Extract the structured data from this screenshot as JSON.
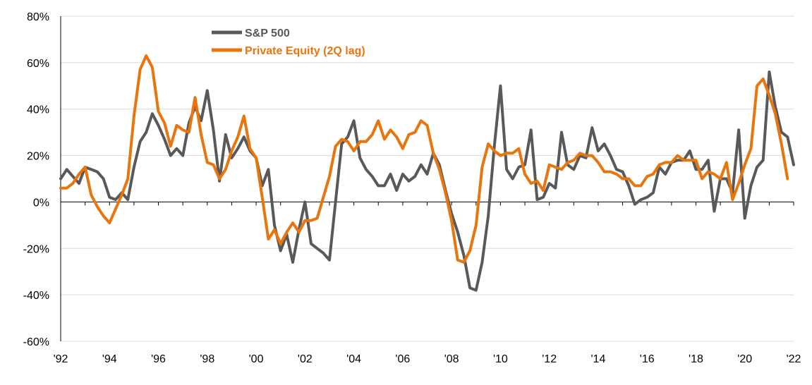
{
  "chart_data": {
    "type": "line",
    "title": "",
    "xlabel": "",
    "ylabel": "",
    "xlim": [
      1992,
      2022
    ],
    "ylim": [
      -60,
      80
    ],
    "y_ticks": [
      -60,
      -40,
      -20,
      0,
      20,
      40,
      60,
      80
    ],
    "y_tick_labels": [
      "-60%",
      "-40%",
      "-20%",
      "0%",
      "20%",
      "40%",
      "60%",
      "80%"
    ],
    "x_ticks": [
      1992,
      1994,
      1996,
      1998,
      2000,
      2002,
      2004,
      2006,
      2008,
      2010,
      2012,
      2014,
      2016,
      2018,
      2020,
      2022
    ],
    "x_tick_labels": [
      "'92",
      "'94",
      "'96",
      "'98",
      "'00",
      "'02",
      "'04",
      "'06",
      "'08",
      "'10",
      "'12",
      "'14",
      "'16",
      "'18",
      "'20",
      "'22"
    ],
    "grid": "horizontal",
    "legend_position": "top-left",
    "series": [
      {
        "name": "S&P 500",
        "color": "#595959",
        "points": [
          [
            1992.0,
            10
          ],
          [
            1992.25,
            14
          ],
          [
            1992.5,
            11
          ],
          [
            1992.75,
            8
          ],
          [
            1993.0,
            15
          ],
          [
            1993.25,
            14
          ],
          [
            1993.5,
            13
          ],
          [
            1993.75,
            10
          ],
          [
            1994.0,
            2
          ],
          [
            1994.25,
            1
          ],
          [
            1994.5,
            4
          ],
          [
            1994.75,
            1
          ],
          [
            1995.0,
            15
          ],
          [
            1995.25,
            26
          ],
          [
            1995.5,
            30
          ],
          [
            1995.75,
            38
          ],
          [
            1996.0,
            33
          ],
          [
            1996.25,
            27
          ],
          [
            1996.5,
            20
          ],
          [
            1996.75,
            23
          ],
          [
            1997.0,
            20
          ],
          [
            1997.25,
            34
          ],
          [
            1997.5,
            41
          ],
          [
            1997.75,
            35
          ],
          [
            1998.0,
            48
          ],
          [
            1998.25,
            31
          ],
          [
            1998.5,
            9
          ],
          [
            1998.75,
            29
          ],
          [
            1999.0,
            19
          ],
          [
            1999.25,
            23
          ],
          [
            1999.5,
            28
          ],
          [
            1999.75,
            22
          ],
          [
            2000.0,
            19
          ],
          [
            2000.25,
            7
          ],
          [
            2000.5,
            14
          ],
          [
            2000.75,
            -10
          ],
          [
            2001.0,
            -21
          ],
          [
            2001.25,
            -14
          ],
          [
            2001.5,
            -26
          ],
          [
            2001.75,
            -12
          ],
          [
            2002.0,
            0
          ],
          [
            2002.25,
            -18
          ],
          [
            2002.5,
            -20
          ],
          [
            2002.75,
            -22
          ],
          [
            2003.0,
            -25
          ],
          [
            2003.25,
            0
          ],
          [
            2003.5,
            25
          ],
          [
            2003.75,
            28
          ],
          [
            2004.0,
            35
          ],
          [
            2004.25,
            19
          ],
          [
            2004.5,
            14
          ],
          [
            2004.75,
            11
          ],
          [
            2005.0,
            7
          ],
          [
            2005.25,
            7
          ],
          [
            2005.5,
            12
          ],
          [
            2005.75,
            5
          ],
          [
            2006.0,
            12
          ],
          [
            2006.25,
            9
          ],
          [
            2006.5,
            11
          ],
          [
            2006.75,
            16
          ],
          [
            2007.0,
            12
          ],
          [
            2007.25,
            21
          ],
          [
            2007.5,
            16
          ],
          [
            2007.75,
            5
          ],
          [
            2008.0,
            -5
          ],
          [
            2008.25,
            -13
          ],
          [
            2008.5,
            -23
          ],
          [
            2008.75,
            -37
          ],
          [
            2009.0,
            -38
          ],
          [
            2009.25,
            -26
          ],
          [
            2009.5,
            -6
          ],
          [
            2009.75,
            24
          ],
          [
            2010.0,
            50
          ],
          [
            2010.25,
            14
          ],
          [
            2010.5,
            10
          ],
          [
            2010.75,
            15
          ],
          [
            2011.0,
            16
          ],
          [
            2011.25,
            31
          ],
          [
            2011.5,
            1
          ],
          [
            2011.75,
            2
          ],
          [
            2012.0,
            8
          ],
          [
            2012.25,
            6
          ],
          [
            2012.5,
            30
          ],
          [
            2012.75,
            16
          ],
          [
            2013.0,
            14
          ],
          [
            2013.25,
            20
          ],
          [
            2013.5,
            19
          ],
          [
            2013.75,
            32
          ],
          [
            2014.0,
            22
          ],
          [
            2014.25,
            25
          ],
          [
            2014.5,
            20
          ],
          [
            2014.75,
            14
          ],
          [
            2015.0,
            13
          ],
          [
            2015.25,
            7
          ],
          [
            2015.5,
            -1
          ],
          [
            2015.75,
            1
          ],
          [
            2016.0,
            2
          ],
          [
            2016.25,
            4
          ],
          [
            2016.5,
            15
          ],
          [
            2016.75,
            12
          ],
          [
            2017.0,
            17
          ],
          [
            2017.25,
            18
          ],
          [
            2017.5,
            18
          ],
          [
            2017.75,
            22
          ],
          [
            2018.0,
            14
          ],
          [
            2018.25,
            14
          ],
          [
            2018.5,
            18
          ],
          [
            2018.75,
            -4
          ],
          [
            2019.0,
            10
          ],
          [
            2019.25,
            10
          ],
          [
            2019.5,
            4
          ],
          [
            2019.75,
            31
          ],
          [
            2020.0,
            -7
          ],
          [
            2020.25,
            7
          ],
          [
            2020.5,
            15
          ],
          [
            2020.75,
            18
          ],
          [
            2021.0,
            56
          ],
          [
            2021.25,
            41
          ],
          [
            2021.5,
            30
          ],
          [
            2021.75,
            28
          ],
          [
            2022.0,
            16
          ]
        ]
      },
      {
        "name": "Private Equity (2Q lag)",
        "color": "#E8750D",
        "points": [
          [
            1992.0,
            6
          ],
          [
            1992.25,
            6
          ],
          [
            1992.5,
            8
          ],
          [
            1992.75,
            12
          ],
          [
            1993.0,
            15
          ],
          [
            1993.25,
            3
          ],
          [
            1993.5,
            -2
          ],
          [
            1993.75,
            -6
          ],
          [
            1994.0,
            -9
          ],
          [
            1994.25,
            -3
          ],
          [
            1994.5,
            3
          ],
          [
            1994.75,
            10
          ],
          [
            1995.0,
            37
          ],
          [
            1995.25,
            57
          ],
          [
            1995.5,
            63
          ],
          [
            1995.75,
            58
          ],
          [
            1996.0,
            39
          ],
          [
            1996.25,
            34
          ],
          [
            1996.5,
            24
          ],
          [
            1996.75,
            33
          ],
          [
            1997.0,
            31
          ],
          [
            1997.25,
            30
          ],
          [
            1997.5,
            45
          ],
          [
            1997.75,
            29
          ],
          [
            1998.0,
            17
          ],
          [
            1998.25,
            16
          ],
          [
            1998.5,
            10
          ],
          [
            1998.75,
            14
          ],
          [
            1999.0,
            22
          ],
          [
            1999.25,
            28
          ],
          [
            1999.5,
            37
          ],
          [
            1999.75,
            23
          ],
          [
            2000.0,
            19
          ],
          [
            2000.25,
            2
          ],
          [
            2000.5,
            -16
          ],
          [
            2000.75,
            -12
          ],
          [
            2001.0,
            -18
          ],
          [
            2001.25,
            -13
          ],
          [
            2001.5,
            -9
          ],
          [
            2001.75,
            -13
          ],
          [
            2002.0,
            -8
          ],
          [
            2002.25,
            -8
          ],
          [
            2002.5,
            -7
          ],
          [
            2002.75,
            2
          ],
          [
            2003.0,
            11
          ],
          [
            2003.25,
            24
          ],
          [
            2003.5,
            27
          ],
          [
            2003.75,
            26
          ],
          [
            2004.0,
            22
          ],
          [
            2004.25,
            26
          ],
          [
            2004.5,
            26
          ],
          [
            2004.75,
            29
          ],
          [
            2005.0,
            35
          ],
          [
            2005.25,
            27
          ],
          [
            2005.5,
            31
          ],
          [
            2005.75,
            28
          ],
          [
            2006.0,
            23
          ],
          [
            2006.25,
            29
          ],
          [
            2006.5,
            30
          ],
          [
            2006.75,
            35
          ],
          [
            2007.0,
            33
          ],
          [
            2007.25,
            21
          ],
          [
            2007.5,
            14
          ],
          [
            2007.75,
            4
          ],
          [
            2008.0,
            -8
          ],
          [
            2008.25,
            -25
          ],
          [
            2008.5,
            -26
          ],
          [
            2008.75,
            -21
          ],
          [
            2009.0,
            -10
          ],
          [
            2009.25,
            15
          ],
          [
            2009.5,
            25
          ],
          [
            2009.75,
            22
          ],
          [
            2010.0,
            20
          ],
          [
            2010.25,
            21
          ],
          [
            2010.5,
            21
          ],
          [
            2010.75,
            23
          ],
          [
            2011.0,
            12
          ],
          [
            2011.25,
            8
          ],
          [
            2011.5,
            9
          ],
          [
            2011.75,
            5
          ],
          [
            2012.0,
            16
          ],
          [
            2012.25,
            15
          ],
          [
            2012.5,
            14
          ],
          [
            2012.75,
            17
          ],
          [
            2013.0,
            18
          ],
          [
            2013.25,
            21
          ],
          [
            2013.5,
            20
          ],
          [
            2013.75,
            20
          ],
          [
            2014.0,
            17
          ],
          [
            2014.25,
            13
          ],
          [
            2014.5,
            13
          ],
          [
            2014.75,
            12
          ],
          [
            2015.0,
            10
          ],
          [
            2015.25,
            10
          ],
          [
            2015.5,
            7
          ],
          [
            2015.75,
            7
          ],
          [
            2016.0,
            11
          ],
          [
            2016.25,
            12
          ],
          [
            2016.5,
            16
          ],
          [
            2016.75,
            17
          ],
          [
            2017.0,
            17
          ],
          [
            2017.25,
            20
          ],
          [
            2017.5,
            18
          ],
          [
            2017.75,
            18
          ],
          [
            2018.0,
            18
          ],
          [
            2018.25,
            10
          ],
          [
            2018.5,
            13
          ],
          [
            2018.75,
            12
          ],
          [
            2019.0,
            10
          ],
          [
            2019.25,
            17
          ],
          [
            2019.5,
            1
          ],
          [
            2019.75,
            8
          ],
          [
            2020.0,
            16
          ],
          [
            2020.25,
            23
          ],
          [
            2020.5,
            50
          ],
          [
            2020.75,
            53
          ],
          [
            2021.0,
            46
          ],
          [
            2021.25,
            38
          ],
          [
            2021.5,
            25
          ],
          [
            2021.75,
            10
          ]
        ]
      }
    ]
  }
}
